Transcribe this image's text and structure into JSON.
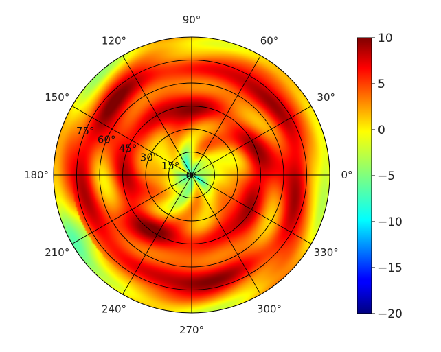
{
  "chart_data": {
    "type": "heatmap",
    "projection": "polar",
    "title": "",
    "theta_ticks_deg": [
      0,
      30,
      60,
      90,
      120,
      150,
      180,
      210,
      240,
      270,
      300,
      330
    ],
    "theta_tick_labels": [
      "0°",
      "30°",
      "60°",
      "90°",
      "120°",
      "150°",
      "180°",
      "210°",
      "240°",
      "270°",
      "300°",
      "330°"
    ],
    "r_ticks": [
      15,
      30,
      45,
      60,
      75
    ],
    "r_tick_labels": [
      "15°",
      "30°",
      "45°",
      "60°",
      "75°"
    ],
    "r_range": [
      0,
      90
    ],
    "center_label": "0°",
    "grid": true,
    "colormap": "jet",
    "colorbar": {
      "range": [
        -20,
        10
      ],
      "ticks": [
        10,
        5,
        0,
        -5,
        -10,
        -15,
        -20
      ],
      "tick_labels": [
        "10",
        "5",
        "0",
        "−5",
        "−10",
        "−15",
        "−20"
      ],
      "placement": "right"
    },
    "value_summary": {
      "typical_range": [
        -6,
        9
      ],
      "center_region_value": -2,
      "ring_peaks_deg": [
        [
          40,
          50
        ],
        [
          62,
          80
        ]
      ],
      "outer_edge_value": 1
    }
  }
}
